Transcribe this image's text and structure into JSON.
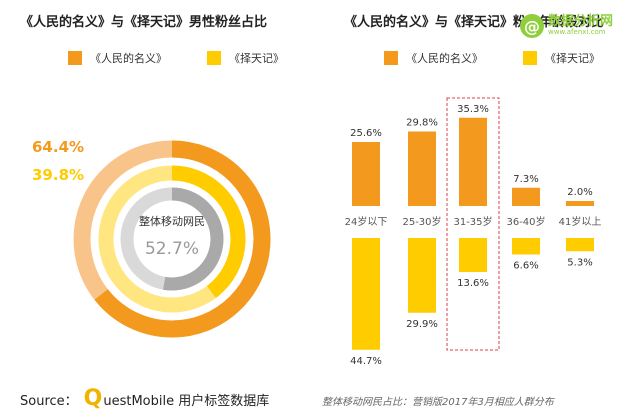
{
  "colors": {
    "orange": "#F39A1E",
    "yellow": "#FFCC00",
    "light_orange": "#F9C48A",
    "light_yellow": "#FFE680",
    "gray": "#A9A9A9",
    "light_gray": "#D9D9D9",
    "accent_green": "#8FCF3C",
    "dash_red": "#E04040"
  },
  "watermark": {
    "icon": "@",
    "text": "数据分析网",
    "url": "www.afenxi.com"
  },
  "footer": {
    "source_label": "Source：",
    "q": "Q",
    "brand_rest": "uestMobile 用户标签数据库",
    "note": "整体移动网民占比：营销版2017年3月相应人群分布"
  },
  "chart_data": [
    {
      "type": "donut",
      "title": "《人民的名义》与《择天记》男性粉丝占比",
      "legend": [
        "《人民的名义》",
        "《择天记》"
      ],
      "series": [
        {
          "name": "《人民的名义》",
          "value": 64.4,
          "label": "64.4%",
          "color": "#F39A1E"
        },
        {
          "name": "《择天记》",
          "value": 39.8,
          "label": "39.8%",
          "color": "#FFCC00"
        },
        {
          "name": "整体移动网民",
          "value": 52.7,
          "label": "52.7%",
          "color": "#A9A9A9"
        }
      ],
      "center_label": "整体移动网民",
      "center_value": "52.7%"
    },
    {
      "type": "bar",
      "title": "《人民的名义》与《择天记》粉丝年龄段对比",
      "legend": [
        "《人民的名义》",
        "《择天记》"
      ],
      "categories": [
        "24岁以下",
        "25-30岁",
        "31-35岁",
        "36-40岁",
        "41岁以上"
      ],
      "series": [
        {
          "name": "《人民的名义》",
          "values": [
            25.6,
            29.8,
            35.3,
            7.3,
            2.0
          ],
          "labels": [
            "25.6%",
            "29.8%",
            "35.3%",
            "7.3%",
            "2.0%"
          ],
          "color": "#F39A1E",
          "direction": "up"
        },
        {
          "name": "《择天记》",
          "values": [
            44.7,
            29.9,
            13.6,
            6.6,
            5.3
          ],
          "labels": [
            "44.7%",
            "29.9%",
            "13.6%",
            "6.6%",
            "5.3%"
          ],
          "color": "#FFCC00",
          "direction": "down"
        }
      ],
      "highlight_category": "31-35岁"
    }
  ]
}
